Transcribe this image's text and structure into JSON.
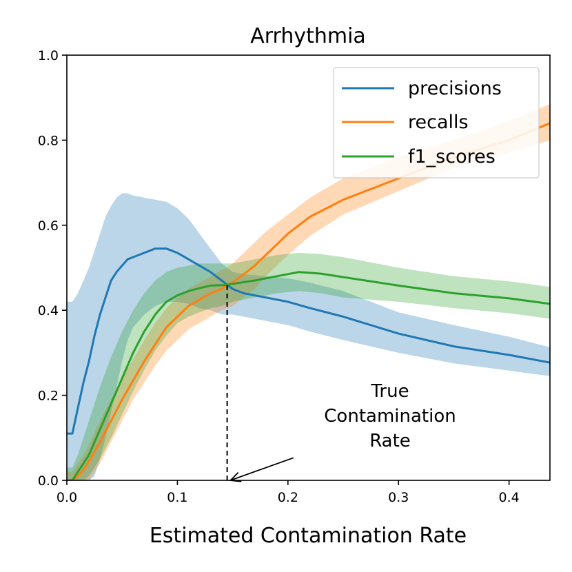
{
  "chart_data": {
    "type": "line",
    "title": "Arrhythmia",
    "xlabel": "Estimated Contamination Rate",
    "ylabel": "",
    "xlim": [
      0.0,
      0.437
    ],
    "ylim": [
      0.0,
      1.0
    ],
    "xticks": [
      0.0,
      0.1,
      0.2,
      0.3,
      0.4
    ],
    "xtick_labels": [
      "0.0",
      "0.1",
      "0.2",
      "0.3",
      "0.4"
    ],
    "yticks": [
      0.0,
      0.2,
      0.4,
      0.6,
      0.8,
      1.0
    ],
    "ytick_labels": [
      "0.0",
      "0.2",
      "0.4",
      "0.6",
      "0.8",
      "1.0"
    ],
    "grid": false,
    "legend_position": "top-right",
    "series": [
      {
        "name": "precisions",
        "color": "#1f77b4",
        "band_color": "#1f77b4",
        "band_opacity": 0.3,
        "x": [
          0.0,
          0.005,
          0.01,
          0.015,
          0.02,
          0.025,
          0.03,
          0.035,
          0.04,
          0.045,
          0.05,
          0.055,
          0.06,
          0.07,
          0.08,
          0.09,
          0.1,
          0.11,
          0.12,
          0.13,
          0.14,
          0.145,
          0.15,
          0.16,
          0.18,
          0.2,
          0.22,
          0.25,
          0.3,
          0.35,
          0.4,
          0.437
        ],
        "mean": [
          0.11,
          0.11,
          0.17,
          0.23,
          0.28,
          0.34,
          0.39,
          0.43,
          0.47,
          0.49,
          0.505,
          0.52,
          0.525,
          0.535,
          0.545,
          0.545,
          0.535,
          0.52,
          0.505,
          0.49,
          0.47,
          0.46,
          0.45,
          0.44,
          0.43,
          0.42,
          0.405,
          0.385,
          0.345,
          0.315,
          0.295,
          0.277
        ],
        "lower": [
          0.0,
          0.0,
          0.0,
          0.0,
          0.0,
          0.01,
          0.05,
          0.1,
          0.16,
          0.22,
          0.28,
          0.33,
          0.36,
          0.39,
          0.41,
          0.42,
          0.42,
          0.415,
          0.405,
          0.4,
          0.39,
          0.39,
          0.39,
          0.385,
          0.375,
          0.365,
          0.35,
          0.33,
          0.3,
          0.275,
          0.258,
          0.245
        ],
        "upper": [
          0.42,
          0.42,
          0.44,
          0.47,
          0.5,
          0.54,
          0.58,
          0.62,
          0.645,
          0.665,
          0.675,
          0.675,
          0.67,
          0.665,
          0.66,
          0.655,
          0.64,
          0.615,
          0.58,
          0.545,
          0.51,
          0.5,
          0.49,
          0.485,
          0.48,
          0.475,
          0.465,
          0.445,
          0.395,
          0.365,
          0.338,
          0.313
        ]
      },
      {
        "name": "recalls",
        "color": "#ff7f0e",
        "band_color": "#ff7f0e",
        "band_opacity": 0.3,
        "x": [
          0.0,
          0.005,
          0.01,
          0.015,
          0.02,
          0.03,
          0.04,
          0.05,
          0.06,
          0.07,
          0.08,
          0.09,
          0.1,
          0.11,
          0.12,
          0.13,
          0.14,
          0.145,
          0.15,
          0.16,
          0.17,
          0.18,
          0.19,
          0.2,
          0.22,
          0.25,
          0.3,
          0.35,
          0.4,
          0.437
        ],
        "mean": [
          0.0,
          0.0,
          0.01,
          0.025,
          0.045,
          0.09,
          0.14,
          0.19,
          0.235,
          0.28,
          0.32,
          0.36,
          0.385,
          0.41,
          0.425,
          0.44,
          0.45,
          0.46,
          0.465,
          0.485,
          0.505,
          0.53,
          0.555,
          0.58,
          0.62,
          0.66,
          0.71,
          0.76,
          0.8,
          0.84
        ],
        "lower": [
          0.0,
          0.0,
          0.0,
          0.0,
          0.0,
          0.04,
          0.09,
          0.14,
          0.19,
          0.23,
          0.27,
          0.305,
          0.33,
          0.355,
          0.37,
          0.385,
          0.4,
          0.405,
          0.41,
          0.43,
          0.45,
          0.48,
          0.505,
          0.53,
          0.575,
          0.625,
          0.68,
          0.735,
          0.77,
          0.8
        ],
        "upper": [
          0.02,
          0.02,
          0.04,
          0.06,
          0.085,
          0.14,
          0.19,
          0.24,
          0.285,
          0.33,
          0.37,
          0.405,
          0.43,
          0.45,
          0.465,
          0.48,
          0.495,
          0.5,
          0.51,
          0.535,
          0.56,
          0.585,
          0.605,
          0.625,
          0.665,
          0.71,
          0.76,
          0.8,
          0.845,
          0.885
        ]
      },
      {
        "name": "f1_scores",
        "color": "#2ca02c",
        "band_color": "#2ca02c",
        "band_opacity": 0.3,
        "x": [
          0.0,
          0.005,
          0.01,
          0.015,
          0.02,
          0.03,
          0.04,
          0.05,
          0.06,
          0.07,
          0.08,
          0.09,
          0.1,
          0.11,
          0.12,
          0.13,
          0.14,
          0.145,
          0.15,
          0.17,
          0.19,
          0.21,
          0.23,
          0.25,
          0.3,
          0.35,
          0.4,
          0.437
        ],
        "mean": [
          0.0,
          0.0,
          0.02,
          0.04,
          0.06,
          0.12,
          0.18,
          0.24,
          0.3,
          0.35,
          0.39,
          0.42,
          0.435,
          0.445,
          0.452,
          0.458,
          0.459,
          0.46,
          0.462,
          0.47,
          0.48,
          0.49,
          0.486,
          0.478,
          0.458,
          0.44,
          0.428,
          0.415
        ],
        "lower": [
          0.0,
          0.0,
          0.0,
          0.0,
          0.01,
          0.05,
          0.1,
          0.155,
          0.21,
          0.26,
          0.305,
          0.34,
          0.37,
          0.385,
          0.395,
          0.405,
          0.41,
          0.415,
          0.42,
          0.43,
          0.44,
          0.445,
          0.44,
          0.43,
          0.42,
          0.405,
          0.393,
          0.38
        ],
        "upper": [
          0.03,
          0.03,
          0.06,
          0.1,
          0.14,
          0.22,
          0.29,
          0.35,
          0.4,
          0.44,
          0.47,
          0.49,
          0.5,
          0.505,
          0.51,
          0.51,
          0.51,
          0.51,
          0.51,
          0.52,
          0.53,
          0.535,
          0.532,
          0.525,
          0.5,
          0.48,
          0.468,
          0.455
        ]
      }
    ],
    "vline": {
      "x": 0.145,
      "y_from": 0.0,
      "y_to": 0.46,
      "style": "dashed",
      "color": "#000000"
    },
    "annotation": {
      "lines": [
        "True",
        "Contamination",
        "Rate"
      ],
      "arrow_from": [
        0.205,
        0.053
      ],
      "arrow_to": [
        0.148,
        0.0
      ]
    }
  }
}
